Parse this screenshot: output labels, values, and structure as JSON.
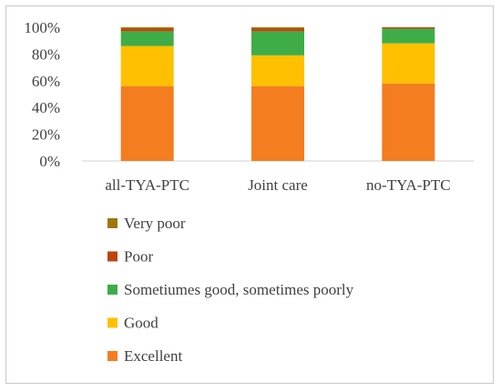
{
  "chart_data": {
    "type": "bar",
    "stacked": true,
    "percent_stacked": true,
    "categories": [
      "all-TYA-PTC",
      "Joint care",
      "no-TYA-PTC"
    ],
    "series": [
      {
        "name": "Excellent",
        "color": "#f47d20",
        "values": [
          56,
          56,
          58
        ]
      },
      {
        "name": "Good",
        "color": "#fec000",
        "values": [
          30,
          23,
          30
        ]
      },
      {
        "name": "Sometiumes good, sometimes poorly",
        "color": "#3fad47",
        "values": [
          11,
          18,
          11
        ]
      },
      {
        "name": "Poor",
        "color": "#c0440e",
        "values": [
          2,
          2,
          1
        ]
      },
      {
        "name": "Very poor",
        "color": "#a0760a",
        "values": [
          1,
          1,
          0
        ]
      }
    ],
    "y_ticks": [
      "0%",
      "20%",
      "40%",
      "60%",
      "80%",
      "100%"
    ],
    "ylim": [
      0,
      100
    ],
    "grid": false,
    "legend_position": "bottom-left",
    "legend_order": [
      "Very poor",
      "Poor",
      "Sometiumes good, sometimes poorly",
      "Good",
      "Excellent"
    ]
  }
}
